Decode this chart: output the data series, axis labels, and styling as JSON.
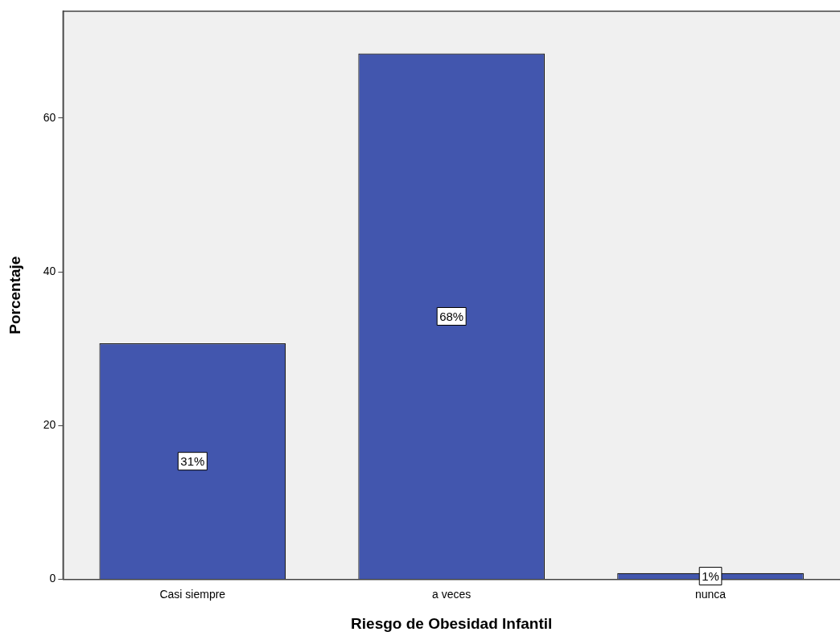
{
  "chart_data": {
    "type": "bar",
    "xlabel": "Riesgo de Obesidad Infantil",
    "ylabel": "Porcentaje",
    "categories": [
      "Casi siempre",
      "a veces",
      "nunca"
    ],
    "values": [
      30.7,
      68.4,
      0.8
    ],
    "value_labels": [
      "31%",
      "68%",
      "1%"
    ],
    "color": "#4256ae",
    "ylim": [
      0,
      73.9
    ],
    "yticks": [
      0,
      20,
      40,
      60
    ],
    "grid": false,
    "legend": false
  }
}
